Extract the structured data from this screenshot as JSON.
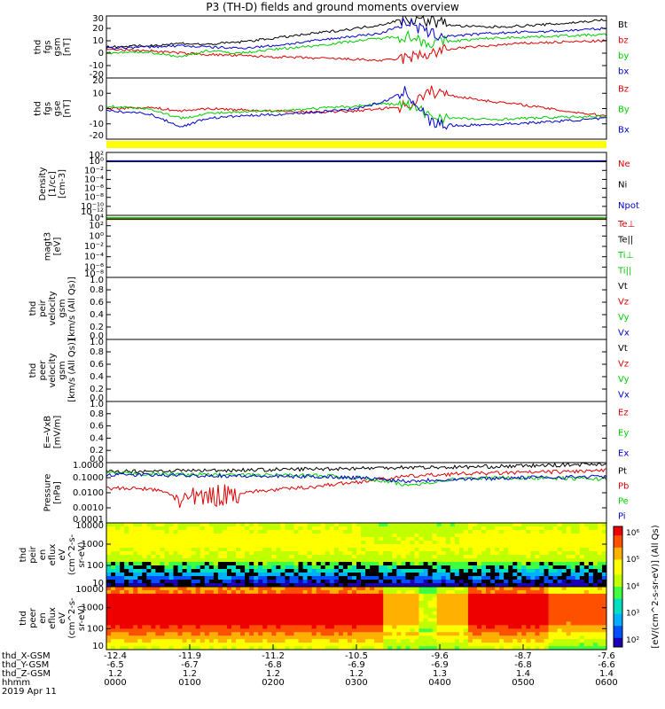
{
  "title": "P3 (TH-D) fields and ground moments overview",
  "colors": {
    "black": "#000000",
    "red": "#dd0000",
    "green": "#00cc00",
    "blue": "#0000cc",
    "yellow": "#ffff00"
  },
  "panels": [
    {
      "id": "fgs-gsm",
      "ylabel": [
        "thd",
        "fgs",
        "gsm",
        "[nT]"
      ],
      "ticks": [
        "30",
        "20",
        "10",
        "0",
        "-10",
        "-20"
      ],
      "legend": [
        {
          "t": "Bt",
          "c": "black"
        },
        {
          "t": "bz",
          "c": "red"
        },
        {
          "t": "by",
          "c": "green"
        },
        {
          "t": "bx",
          "c": "blue"
        }
      ]
    },
    {
      "id": "fgs-gse",
      "ylabel": [
        "thd",
        "fgs",
        "gse",
        "[nT]"
      ],
      "ticks": [
        "20",
        "10",
        "0",
        "-10",
        "-20"
      ],
      "legend": [
        {
          "t": "Bz",
          "c": "red"
        },
        {
          "t": "By",
          "c": "green"
        },
        {
          "t": "Bx",
          "c": "blue"
        }
      ]
    },
    {
      "id": "density",
      "ylabel": [
        "Density",
        "[1/cc]",
        "[cm-3]"
      ],
      "ticks": [
        "10²",
        "10⁰",
        "10⁻²",
        "10⁻⁴",
        "10⁻⁶",
        "10⁻⁸",
        "10⁻¹⁰",
        "10⁻¹²"
      ],
      "legend": [
        {
          "t": "Ne",
          "c": "red"
        },
        {
          "t": "Ni",
          "c": "black"
        },
        {
          "t": "Npot",
          "c": "blue"
        }
      ]
    },
    {
      "id": "temp",
      "ylabel": [
        "magt3",
        "[eV]"
      ],
      "ticks": [
        "10⁴",
        "10²",
        "10⁰",
        "10⁻²",
        "10⁻⁴",
        "10⁻⁶",
        "10⁻⁸"
      ],
      "legend": [
        {
          "t": "Te⊥",
          "c": "red"
        },
        {
          "t": "Te||",
          "c": "black"
        },
        {
          "t": "Ti⊥",
          "c": "green"
        },
        {
          "t": "Ti||",
          "c": "green"
        }
      ]
    },
    {
      "id": "peir-vel",
      "ylabel": [
        "thd",
        "peir",
        "velocity",
        "gsm",
        "[km/s (All Qs)]"
      ],
      "ticks": [
        "1.0",
        "0.8",
        "0.6",
        "0.4",
        "0.2",
        "0.0"
      ],
      "legend": [
        {
          "t": "Vt",
          "c": "black"
        },
        {
          "t": "Vz",
          "c": "red"
        },
        {
          "t": "Vy",
          "c": "green"
        },
        {
          "t": "Vx",
          "c": "blue"
        }
      ]
    },
    {
      "id": "peer-vel",
      "ylabel": [
        "thd",
        "peer",
        "velocity",
        "gsm",
        "[km/s (All Qs)]"
      ],
      "ticks": [
        "1.0",
        "0.8",
        "0.6",
        "0.4",
        "0.2",
        "0.0"
      ],
      "legend": [
        {
          "t": "Vt",
          "c": "black"
        },
        {
          "t": "Vz",
          "c": "red"
        },
        {
          "t": "Vy",
          "c": "green"
        },
        {
          "t": "Vx",
          "c": "blue"
        }
      ]
    },
    {
      "id": "efield",
      "ylabel": [
        "E=-VxB",
        "[mV/m]"
      ],
      "ticks": [
        "1.0",
        "0.8",
        "0.6",
        "0.4",
        "0.2",
        "0.0"
      ],
      "legend": [
        {
          "t": "Ez",
          "c": "red"
        },
        {
          "t": "Ey",
          "c": "green"
        },
        {
          "t": "Ex",
          "c": "blue"
        }
      ]
    },
    {
      "id": "pressure",
      "ylabel": [
        "Pressure",
        "[nPa]"
      ],
      "ticks": [
        "1.0000",
        "0.1000",
        "0.0100",
        "0.0010",
        "0.0001"
      ],
      "legend": [
        {
          "t": "Pt",
          "c": "black"
        },
        {
          "t": "Pb",
          "c": "red"
        },
        {
          "t": "Pe",
          "c": "green"
        },
        {
          "t": "Pi",
          "c": "blue"
        }
      ]
    },
    {
      "id": "peir-spec",
      "ylabel": [
        "thd",
        "peir",
        "en",
        "eflux",
        "eV",
        "(cm^2-s-",
        "sr-eV)"
      ],
      "ticks": [
        "10000",
        "1000",
        "100",
        "10"
      ]
    },
    {
      "id": "peer-spec",
      "ylabel": [
        "thd",
        "peer",
        "en",
        "eflux",
        "eV",
        "(cm^2-s-",
        "sr-eV)"
      ],
      "ticks": [
        "10000",
        "1000",
        "100",
        "10"
      ]
    }
  ],
  "colorbar": {
    "ticks": [
      "10⁶",
      "10⁵",
      "10⁴",
      "10³",
      "10²"
    ],
    "label": "[eV/(cm^2-s-sr-eV)] (All Qs)"
  },
  "xaxis": {
    "row_labels": [
      "thd_X-GSM",
      "thd_Y-GSM",
      "thd_Z-GSM",
      "hhmm",
      "2019 Apr 11"
    ],
    "columns": [
      {
        "x": "-12.4",
        "y": "-6.5",
        "z": "1.2",
        "t": "0000"
      },
      {
        "x": "-11.9",
        "y": "-6.7",
        "z": "1.2",
        "t": "0100"
      },
      {
        "x": "-11.2",
        "y": "-6.8",
        "z": "1.2",
        "t": "0200"
      },
      {
        "x": "-10.5",
        "y": "-6.9",
        "z": "1.2",
        "t": "0300"
      },
      {
        "x": "-9.6",
        "y": "-6.9",
        "z": "1.3",
        "t": "0400"
      },
      {
        "x": "-8.7",
        "y": "-6.8",
        "z": "1.4",
        "t": "0500"
      },
      {
        "x": "-7.6",
        "y": "-6.6",
        "z": "1.4",
        "t": "0600"
      }
    ]
  },
  "chart_data": [
    {
      "type": "line",
      "title": "P3 (TH-D) fields and ground moments overview",
      "ylabel": "thd fgs gsm [nT]",
      "ylim": [
        -20,
        30
      ],
      "x_hours": [
        0,
        0.5,
        0.9,
        1.2,
        1.6,
        2.0,
        2.5,
        3.0,
        3.3,
        3.6,
        3.9,
        4.2,
        4.6,
        5.0,
        5.5,
        6.0
      ],
      "series": [
        {
          "name": "Bt",
          "values": [
            5,
            6,
            8,
            7,
            9,
            12,
            16,
            20,
            23,
            28,
            26,
            22,
            21,
            22,
            24,
            27
          ]
        },
        {
          "name": "bz",
          "values": [
            3,
            2,
            0,
            -1,
            -2,
            -3,
            -4,
            -5,
            -6,
            -4,
            0,
            4,
            6,
            8,
            9,
            10
          ]
        },
        {
          "name": "by",
          "values": [
            0,
            1,
            -3,
            2,
            0,
            3,
            6,
            10,
            12,
            14,
            8,
            10,
            12,
            13,
            14,
            15
          ]
        },
        {
          "name": "bx",
          "values": [
            4,
            5,
            6,
            5,
            4,
            6,
            10,
            14,
            16,
            25,
            15,
            14,
            16,
            17,
            18,
            20
          ]
        }
      ]
    },
    {
      "type": "line",
      "ylabel": "thd fgs gse [nT]",
      "ylim": [
        -25,
        25
      ],
      "x_hours": [
        0,
        0.5,
        0.9,
        1.2,
        1.6,
        2.0,
        2.5,
        3.0,
        3.3,
        3.6,
        3.9,
        4.2,
        4.6,
        5.0,
        5.5,
        6.0
      ],
      "series": [
        {
          "name": "Bz",
          "values": [
            0,
            1,
            -2,
            0,
            -1,
            -2,
            -3,
            -2,
            0,
            2,
            14,
            10,
            6,
            3,
            -2,
            -6
          ]
        },
        {
          "name": "By",
          "values": [
            2,
            0,
            -8,
            -4,
            -3,
            -2,
            0,
            2,
            4,
            3,
            -6,
            -8,
            -9,
            -8,
            -7,
            -6
          ]
        },
        {
          "name": "Bx",
          "values": [
            -2,
            -4,
            -15,
            -8,
            -6,
            -5,
            -3,
            0,
            5,
            14,
            -12,
            -14,
            -13,
            -12,
            -10,
            -8
          ]
        }
      ]
    },
    {
      "type": "line",
      "ylabel": "Density [1/cc]",
      "ylog": true,
      "ylim": [
        1e-13,
        100.0
      ],
      "series": [
        {
          "name": "Ne",
          "values": [
            0.8
          ]
        },
        {
          "name": "Ni",
          "values": [
            0.7
          ]
        },
        {
          "name": "Npot",
          "values": [
            0.9
          ]
        }
      ]
    },
    {
      "type": "line",
      "ylabel": "magt3 [eV]",
      "ylog": true,
      "ylim": [
        1e-09,
        10000.0
      ],
      "series": [
        {
          "name": "Te⊥",
          "values": [
            1500
          ]
        },
        {
          "name": "Te||",
          "values": [
            2000
          ]
        },
        {
          "name": "Ti⊥",
          "values": [
            3000
          ]
        },
        {
          "name": "Ti||",
          "values": [
            2800
          ]
        }
      ]
    },
    {
      "type": "line",
      "ylabel": "Pressure [nPa]",
      "ylog": true,
      "ylim": [
        0.0001,
        1
      ],
      "x_hours": [
        0,
        0.5,
        0.9,
        1.2,
        1.6,
        2.0,
        2.5,
        3.0,
        3.3,
        3.6,
        3.9,
        4.2,
        4.6,
        5.0,
        5.5,
        6.0
      ],
      "series": [
        {
          "name": "Pt",
          "values": [
            0.25,
            0.28,
            0.3,
            0.3,
            0.32,
            0.34,
            0.38,
            0.42,
            0.45,
            0.5,
            0.48,
            0.5,
            0.55,
            0.6,
            0.7,
            0.85
          ]
        },
        {
          "name": "Pb",
          "values": [
            0.02,
            0.018,
            0.003,
            0.005,
            0.01,
            0.015,
            0.025,
            0.05,
            0.08,
            0.12,
            0.15,
            0.18,
            0.2,
            0.22,
            0.25,
            0.3
          ]
        },
        {
          "name": "Pe",
          "values": [
            0.2,
            0.18,
            0.17,
            0.16,
            0.15,
            0.15,
            0.14,
            0.1,
            0.06,
            0.03,
            0.05,
            0.08,
            0.1,
            0.1,
            0.09,
            0.08
          ]
        },
        {
          "name": "Pi",
          "values": [
            0.16,
            0.15,
            0.14,
            0.14,
            0.13,
            0.12,
            0.12,
            0.1,
            0.08,
            0.06,
            0.07,
            0.08,
            0.09,
            0.1,
            0.11,
            0.12
          ]
        }
      ]
    },
    {
      "type": "heatmap",
      "ylabel": "thd peir en eflux",
      "ylog": true,
      "ylim": [
        5,
        20000
      ]
    },
    {
      "type": "heatmap",
      "ylabel": "thd peer en eflux",
      "ylog": true,
      "ylim": [
        5,
        20000
      ]
    }
  ]
}
